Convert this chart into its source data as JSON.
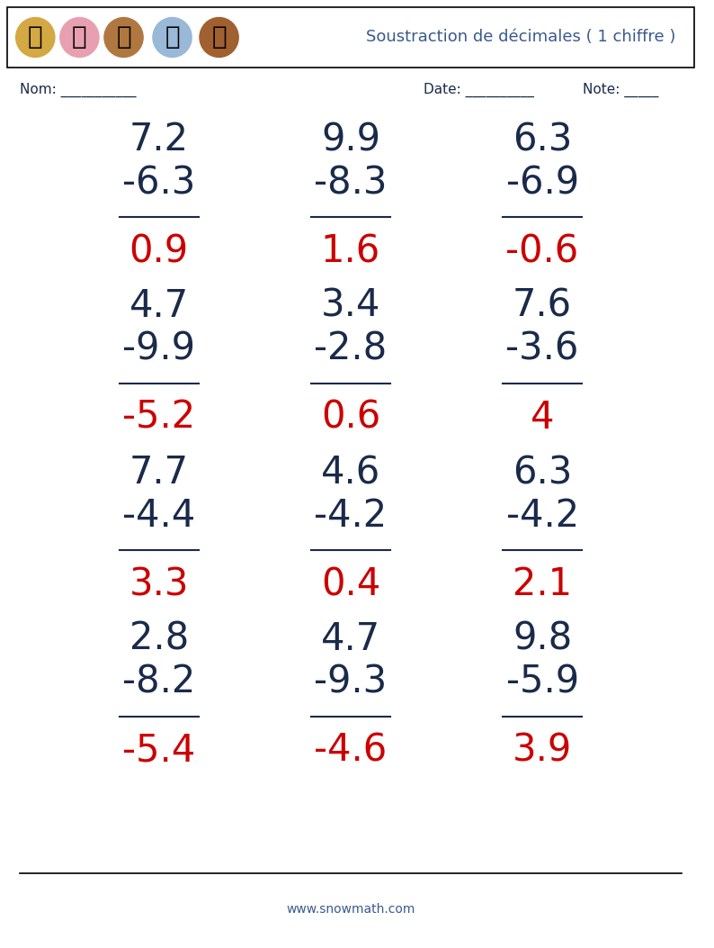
{
  "title": "Soustraction de décimales ( 1 chiffre )",
  "title_color": "#3a5a8c",
  "nom_label": "Nom: ___________",
  "date_label": "Date: __________",
  "note_label": "Note: _____",
  "website": "www.snowmath.com",
  "problems": [
    {
      "num1": "7.2",
      "num2": "-6.3",
      "result": "0.9",
      "result_neg": false
    },
    {
      "num1": "9.9",
      "num2": "-8.3",
      "result": "1.6",
      "result_neg": false
    },
    {
      "num1": "6.3",
      "num2": "-6.9",
      "result": "-0.6",
      "result_neg": true
    },
    {
      "num1": "4.7",
      "num2": "-9.9",
      "result": "-5.2",
      "result_neg": true
    },
    {
      "num1": "3.4",
      "num2": "-2.8",
      "result": "0.6",
      "result_neg": false
    },
    {
      "num1": "7.6",
      "num2": "-3.6",
      "result": "4",
      "result_neg": false
    },
    {
      "num1": "7.7",
      "num2": "-4.4",
      "result": "3.3",
      "result_neg": false
    },
    {
      "num1": "4.6",
      "num2": "-4.2",
      "result": "0.4",
      "result_neg": false
    },
    {
      "num1": "6.3",
      "num2": "-4.2",
      "result": "2.1",
      "result_neg": false
    },
    {
      "num1": "2.8",
      "num2": "-8.2",
      "result": "-5.4",
      "result_neg": true
    },
    {
      "num1": "4.7",
      "num2": "-9.3",
      "result": "-4.6",
      "result_neg": true
    },
    {
      "num1": "9.8",
      "num2": "-5.9",
      "result": "3.9",
      "result_neg": false
    }
  ],
  "num_color": "#1a2a4a",
  "result_pos_color": "#cc0000",
  "result_neg_color": "#cc0000",
  "background_color": "#ffffff",
  "header_border_color": "#000000",
  "cols": 3,
  "rows": 4
}
